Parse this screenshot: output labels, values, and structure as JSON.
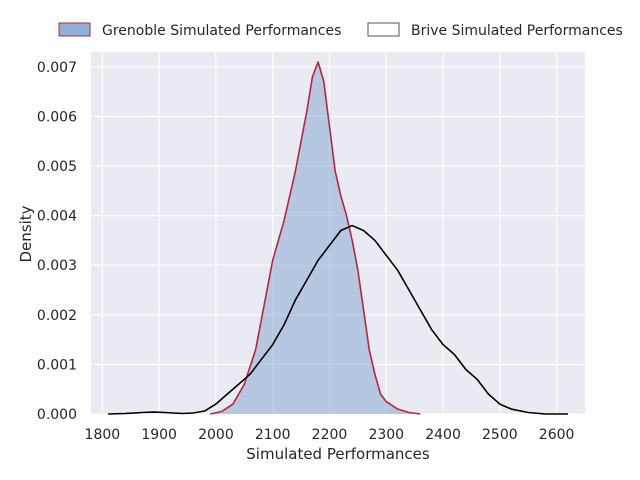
{
  "chart_data": {
    "type": "area",
    "xlabel": "Simulated Performances",
    "ylabel": "Density",
    "xlim": [
      1780,
      2650
    ],
    "ylim": [
      0,
      0.0073
    ],
    "x_ticks": [
      1800,
      1900,
      2000,
      2100,
      2200,
      2300,
      2400,
      2500,
      2600
    ],
    "y_ticks": [
      0.0,
      0.001,
      0.002,
      0.003,
      0.004,
      0.005,
      0.006,
      0.007
    ],
    "y_tick_labels": [
      "0.000",
      "0.001",
      "0.002",
      "0.003",
      "0.004",
      "0.005",
      "0.006",
      "0.007"
    ],
    "grid": true,
    "legend_position": "top",
    "series": [
      {
        "name": "Grenoble Simulated Performances",
        "fill": "#92b0d6",
        "stroke": "#b4283f",
        "filled": true,
        "points": [
          [
            1990,
            0.0
          ],
          [
            2010,
            5e-05
          ],
          [
            2030,
            0.0002
          ],
          [
            2050,
            0.0006
          ],
          [
            2070,
            0.0013
          ],
          [
            2080,
            0.0019
          ],
          [
            2090,
            0.0025
          ],
          [
            2100,
            0.0031
          ],
          [
            2110,
            0.0035
          ],
          [
            2120,
            0.0039
          ],
          [
            2130,
            0.0044
          ],
          [
            2140,
            0.0049
          ],
          [
            2150,
            0.0055
          ],
          [
            2160,
            0.0061
          ],
          [
            2170,
            0.0068
          ],
          [
            2180,
            0.0071
          ],
          [
            2190,
            0.0067
          ],
          [
            2200,
            0.0058
          ],
          [
            2210,
            0.0049
          ],
          [
            2220,
            0.0044
          ],
          [
            2230,
            0.004
          ],
          [
            2240,
            0.0035
          ],
          [
            2250,
            0.0029
          ],
          [
            2260,
            0.0021
          ],
          [
            2270,
            0.0013
          ],
          [
            2280,
            0.0008
          ],
          [
            2290,
            0.0004
          ],
          [
            2300,
            0.00025
          ],
          [
            2320,
            0.0001
          ],
          [
            2340,
            3e-05
          ],
          [
            2360,
            0.0
          ]
        ]
      },
      {
        "name": "Brive Simulated Performances",
        "fill": "none",
        "stroke": "#000000",
        "filled": false,
        "points": [
          [
            1810,
            0.0
          ],
          [
            1840,
            1e-05
          ],
          [
            1870,
            3e-05
          ],
          [
            1890,
            4e-05
          ],
          [
            1910,
            3e-05
          ],
          [
            1940,
            1e-05
          ],
          [
            1960,
            2e-05
          ],
          [
            1980,
            6e-05
          ],
          [
            2000,
            0.0002
          ],
          [
            2020,
            0.0004
          ],
          [
            2040,
            0.0006
          ],
          [
            2060,
            0.0008
          ],
          [
            2080,
            0.0011
          ],
          [
            2100,
            0.0014
          ],
          [
            2120,
            0.0018
          ],
          [
            2140,
            0.0023
          ],
          [
            2160,
            0.0027
          ],
          [
            2180,
            0.0031
          ],
          [
            2200,
            0.0034
          ],
          [
            2220,
            0.0037
          ],
          [
            2240,
            0.0038
          ],
          [
            2260,
            0.0037
          ],
          [
            2280,
            0.0035
          ],
          [
            2300,
            0.0032
          ],
          [
            2320,
            0.0029
          ],
          [
            2340,
            0.0025
          ],
          [
            2360,
            0.0021
          ],
          [
            2380,
            0.0017
          ],
          [
            2400,
            0.0014
          ],
          [
            2420,
            0.0012
          ],
          [
            2440,
            0.0009
          ],
          [
            2460,
            0.0007
          ],
          [
            2480,
            0.0004
          ],
          [
            2500,
            0.0002
          ],
          [
            2520,
            0.0001
          ],
          [
            2550,
            3e-05
          ],
          [
            2580,
            0.0
          ],
          [
            2620,
            0.0
          ]
        ]
      }
    ]
  }
}
